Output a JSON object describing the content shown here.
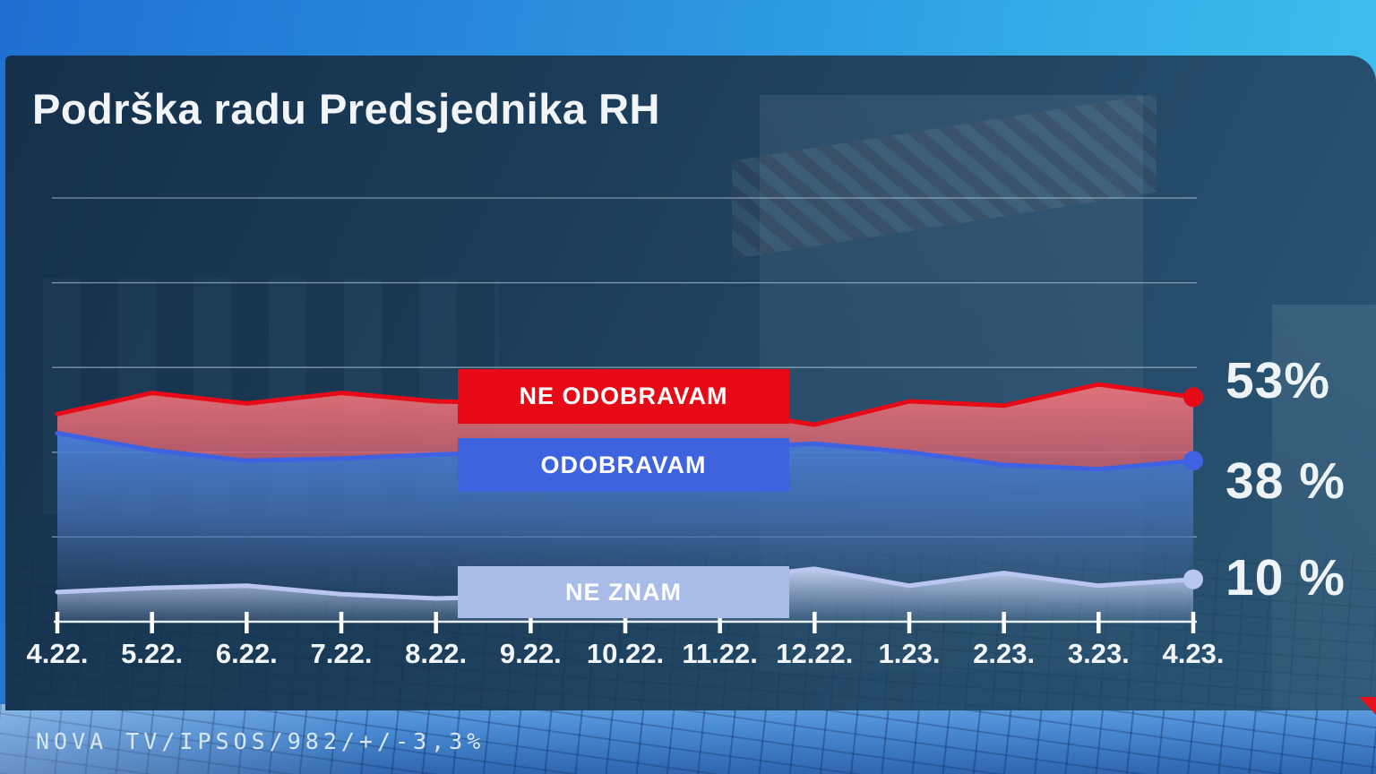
{
  "title": "Podrška radu Predsjednika RH",
  "source_line": "NOVA TV/IPSOS/982/+/-3,3%",
  "colors": {
    "panel": "#1b3c58",
    "accent_red": "#e50a15",
    "accent_blue": "#3d63de",
    "accent_light_blue": "#a9bce8",
    "axis": "#f2f6fa"
  },
  "chart_data": {
    "type": "area",
    "title": "Podrška radu Predsjednika RH",
    "xlabel": "",
    "ylabel": "",
    "ylim": [
      0,
      100
    ],
    "grid": true,
    "gridlines_pct": [
      20,
      40,
      60,
      80,
      100
    ],
    "legend_position": "center-overlay-boxes",
    "x_labels": [
      "4.22.",
      "5.22.",
      "6.22.",
      "7.22.",
      "8.22.",
      "9.22.",
      "10.22.",
      "11.22.",
      "12.22.",
      "1.23.",
      "2.23.",
      "3.23.",
      "4.23."
    ],
    "series": [
      {
        "name": "NE ODOBRAVAM",
        "end_label": "53%",
        "line_color": "#e60b16",
        "fill_mode": "to-next",
        "values": [
          49,
          54,
          51.5,
          54,
          52,
          51.5,
          51,
          50,
          46.5,
          52,
          51,
          56,
          53
        ]
      },
      {
        "name": "ODOBRAVAM",
        "end_label": "38 %",
        "line_color": "#3e62e2",
        "fill_mode": "to-baseline",
        "values": [
          44.5,
          40.5,
          38,
          38.5,
          39.5,
          40,
          40.5,
          41,
          42,
          40,
          37,
          36,
          38
        ]
      },
      {
        "name": "NE ZNAM",
        "end_label": "10 %",
        "line_color": "#b9c6ef",
        "fill_mode": "to-baseline",
        "values": [
          7,
          8,
          8.5,
          6.5,
          5.5,
          6,
          7.5,
          10,
          12.5,
          8.5,
          11.5,
          8.5,
          10
        ]
      }
    ]
  }
}
